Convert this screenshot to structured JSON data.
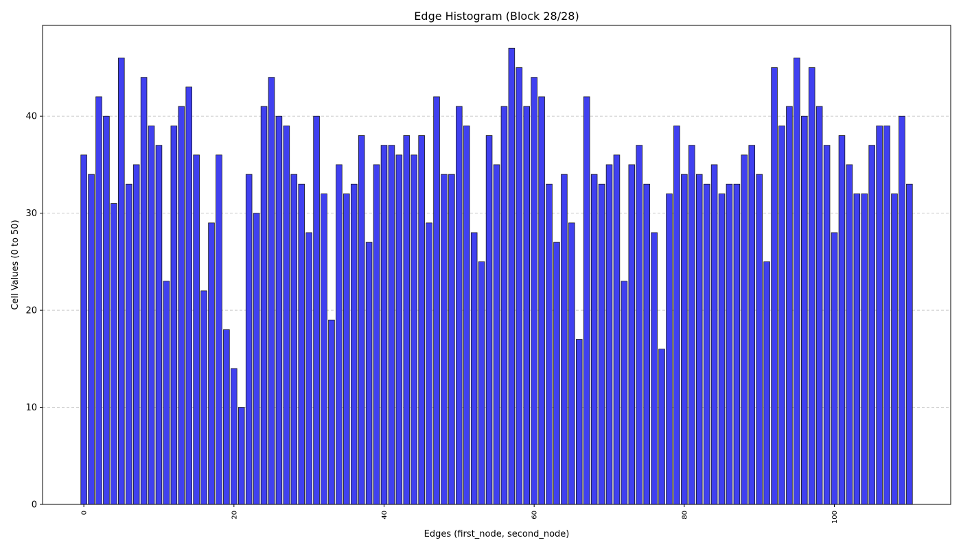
{
  "chart_data": {
    "type": "bar",
    "title": "Edge Histogram (Block 28/28)",
    "xlabel": "Edges (first_node, second_node)",
    "ylabel": "Cell Values (0 to 50)",
    "x": [
      0,
      1,
      2,
      3,
      4,
      5,
      6,
      7,
      8,
      9,
      10,
      11,
      12,
      13,
      14,
      15,
      16,
      17,
      18,
      19,
      20,
      21,
      22,
      23,
      24,
      25,
      26,
      27,
      28,
      29,
      30,
      31,
      32,
      33,
      34,
      35,
      36,
      37,
      38,
      39,
      40,
      41,
      42,
      43,
      44,
      45,
      46,
      47,
      48,
      49,
      50,
      51,
      52,
      53,
      54,
      55,
      56,
      57,
      58,
      59,
      60,
      61,
      62,
      63,
      64,
      65,
      66,
      67,
      68,
      69,
      70,
      71,
      72,
      73,
      74,
      75,
      76,
      77,
      78,
      79,
      80,
      81,
      82,
      83,
      84,
      85,
      86,
      87,
      88,
      89,
      90,
      91,
      92,
      93,
      94,
      95,
      96,
      97,
      98,
      99,
      100,
      101,
      102,
      103,
      104,
      105,
      106,
      107,
      108,
      109,
      110
    ],
    "values": [
      36,
      34,
      42,
      40,
      31,
      46,
      33,
      35,
      44,
      39,
      37,
      23,
      39,
      41,
      43,
      36,
      22,
      29,
      36,
      18,
      14,
      10,
      34,
      30,
      41,
      44,
      40,
      39,
      34,
      33,
      28,
      40,
      32,
      19,
      35,
      32,
      33,
      38,
      27,
      35,
      37,
      37,
      36,
      38,
      36,
      38,
      29,
      42,
      34,
      34,
      41,
      39,
      28,
      25,
      38,
      35,
      41,
      47,
      45,
      41,
      44,
      42,
      33,
      27,
      34,
      29,
      17,
      42,
      34,
      33,
      35,
      36,
      23,
      35,
      37,
      33,
      28,
      16,
      32,
      39,
      34,
      37,
      34,
      33,
      35,
      32,
      33,
      33,
      36,
      37,
      34,
      25,
      45,
      39,
      41,
      46,
      40,
      45,
      41,
      37,
      28,
      38,
      35,
      32,
      32,
      37,
      39,
      39,
      32,
      40,
      33
    ],
    "xlim": [
      -5.5,
      115.5
    ],
    "ylim": [
      0,
      49.35
    ],
    "xticks": [
      "0",
      "20",
      "40",
      "60",
      "80",
      "100"
    ],
    "xtick_values": [
      0,
      20,
      40,
      60,
      80,
      100
    ],
    "yticks": [
      "0",
      "10",
      "20",
      "30",
      "40"
    ],
    "ytick_values": [
      0,
      10,
      20,
      30,
      40
    ],
    "grid": "y-dashed",
    "colors": {
      "bar": "#4040f0",
      "edge": "#1a1a1a",
      "grid": "#c8c8c8"
    }
  }
}
